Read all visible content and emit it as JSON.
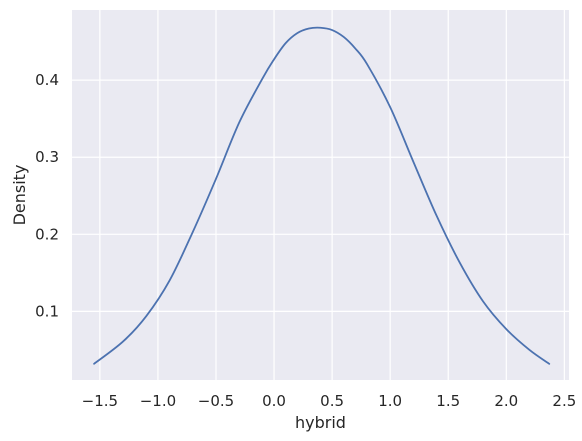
{
  "chart_data": {
    "type": "line",
    "title": "",
    "xlabel": "hybrid",
    "ylabel": "Density",
    "xlim": [
      -1.74,
      2.54
    ],
    "ylim": [
      0.011,
      0.491
    ],
    "grid": true,
    "background_color": "#eaeaf2",
    "grid_color": "#ffffff",
    "line_color": "#4c72b0",
    "x_ticks": [
      -1.5,
      -1.0,
      -0.5,
      0.0,
      0.5,
      1.0,
      1.5,
      2.0,
      2.5
    ],
    "x_tick_labels": [
      "−1.5",
      "−1.0",
      "−0.5",
      "0.0",
      "0.5",
      "1.0",
      "1.5",
      "2.0",
      "2.5"
    ],
    "y_ticks": [
      0.1,
      0.2,
      0.3,
      0.4
    ],
    "y_tick_labels": [
      "0.1",
      "0.2",
      "0.3",
      "0.4"
    ],
    "series": [
      {
        "x": [
          -1.55,
          -1.3,
          -1.1,
          -0.9,
          -0.7,
          -0.5,
          -0.3,
          -0.1,
          0.0,
          0.1,
          0.2,
          0.3,
          0.4,
          0.5,
          0.6,
          0.7,
          0.8,
          1.0,
          1.2,
          1.4,
          1.6,
          1.8,
          2.0,
          2.2,
          2.37
        ],
        "y": [
          0.032,
          0.061,
          0.094,
          0.14,
          0.203,
          0.272,
          0.345,
          0.402,
          0.427,
          0.448,
          0.461,
          0.467,
          0.468,
          0.465,
          0.456,
          0.441,
          0.421,
          0.365,
          0.294,
          0.224,
          0.163,
          0.113,
          0.077,
          0.05,
          0.032
        ]
      }
    ]
  }
}
